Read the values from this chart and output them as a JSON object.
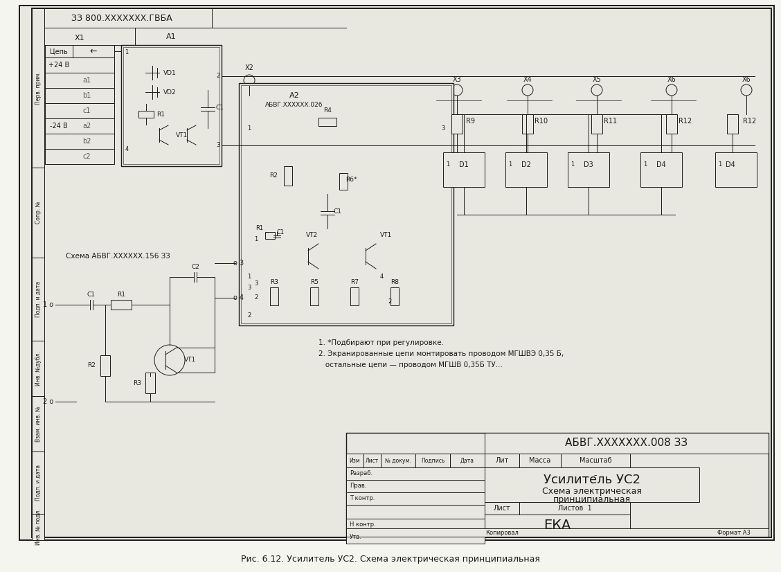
{
  "bg_color": "#f5f5f0",
  "paper_color": "#e8e8e0",
  "line_color": "#1a1a1a",
  "title_block": {
    "doc_number": "АБВГ.XXXXXXX.008 ЗЗ",
    "device_name": "Усилитель УС2",
    "schema_type": "Схема электрическая",
    "schema_type2": "принципиальная",
    "company": "ЕКА",
    "sheet_label": "Лист",
    "sheets_label": "Листов  1",
    "copied_label": "Копировал",
    "format_label": "Формат А3",
    "izm": "Изм",
    "list_": "Лист",
    "n_dok": "№ докум.",
    "podpis": "Подпись",
    "data_": "Дата",
    "razrab": "Разраб.",
    "prob": "Прав.",
    "t_kontr": "Т контр.",
    "n_kontr": "Н контр.",
    "utv": "Утв.",
    "lit": "Лит",
    "massa": "Масса",
    "masshtab": "Масштаб",
    "dash": "-"
  },
  "top_stamp": "ЗЗ 800.XXXXXXX.ГВБА",
  "schema_label1": "Схема АБВГ.XXXXXX.156 ЗЗ",
  "a2_label": "А2",
  "a2_sub": "АБВГ.XXXXXX.026",
  "a1_label": "А1",
  "notes": [
    "1. *Подбирают при регулировке.",
    "2. Экранированные цепи монтировать проводом МГШВЭ 0,35 Б,",
    "   остальные цепи — проводом МГШВ 0,35Б ТУ..."
  ],
  "caption": "Рис. 6.12. Усилитель УС2. Схема электрическая принципиальная",
  "x1_label": "X1",
  "chain_header": "Цепь",
  "plus24": "+24 В",
  "minus24": "-24 В",
  "a1_rows": [
    "a1",
    "b1",
    "c1",
    "a2",
    "b2",
    "c2"
  ],
  "components_a1": [
    "VD1",
    "VD2",
    "R1",
    "VT1",
    "C1"
  ],
  "components_a2": [
    "R4",
    "R2",
    "R6*",
    "C1",
    "R1",
    "C1",
    "VT2",
    "VT1",
    "R3",
    "R5",
    "R7",
    "R8"
  ],
  "right_components": [
    "R9",
    "R10",
    "R11",
    "R12",
    "D1",
    "D2",
    "D3",
    "D4"
  ],
  "connectors": [
    "X2",
    "X3",
    "X4",
    "X5",
    "X6"
  ],
  "sub_schema_components": [
    "C1",
    "R1",
    "R2",
    "R3",
    "C2",
    "VT1"
  ]
}
